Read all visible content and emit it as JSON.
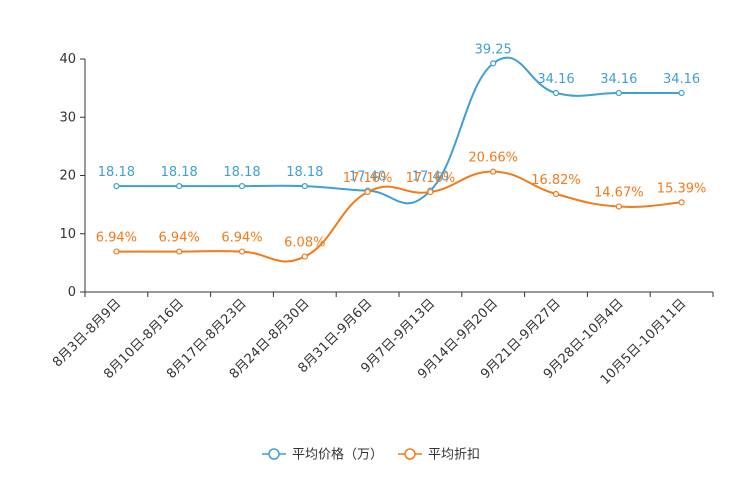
{
  "chart_data": {
    "type": "line",
    "title": "",
    "xlabel": "",
    "ylabel": "",
    "ylim": [
      0,
      40
    ],
    "yticks": [
      "0",
      "10",
      "20",
      "30",
      "40"
    ],
    "categories": [
      "8月3日-8月9日",
      "8月10日-8月16日",
      "8月17日-8月23日",
      "8月24日-8月30日",
      "8月31日-9月6日",
      "9月7日-9月13日",
      "9月14日-9月20日",
      "9月21日-9月27日",
      "9月28日-10月4日",
      "10月5日-10月11日"
    ],
    "series": [
      {
        "name": "平均价格（万）",
        "color": "#3fa0d4",
        "values": [
          18.18,
          18.18,
          18.18,
          18.18,
          17.4,
          17.4,
          39.25,
          34.16,
          34.16,
          34.16
        ],
        "labels": [
          "18.18",
          "18.18",
          "18.18",
          "18.18",
          "17.40",
          "17.40",
          "39.25",
          "34.16",
          "34.16",
          "34.16"
        ]
      },
      {
        "name": "平均折扣",
        "color": "#f47a1a",
        "values": [
          6.94,
          6.94,
          6.94,
          6.08,
          17.16,
          17.16,
          20.66,
          16.82,
          14.67,
          15.39
        ],
        "labels": [
          "6.94%",
          "6.94%",
          "6.94%",
          "6.08%",
          "17.16%",
          "17.16%",
          "20.66%",
          "16.82%",
          "14.67%",
          "15.39%"
        ]
      }
    ],
    "legend_position": "bottom-center",
    "grid": false
  }
}
